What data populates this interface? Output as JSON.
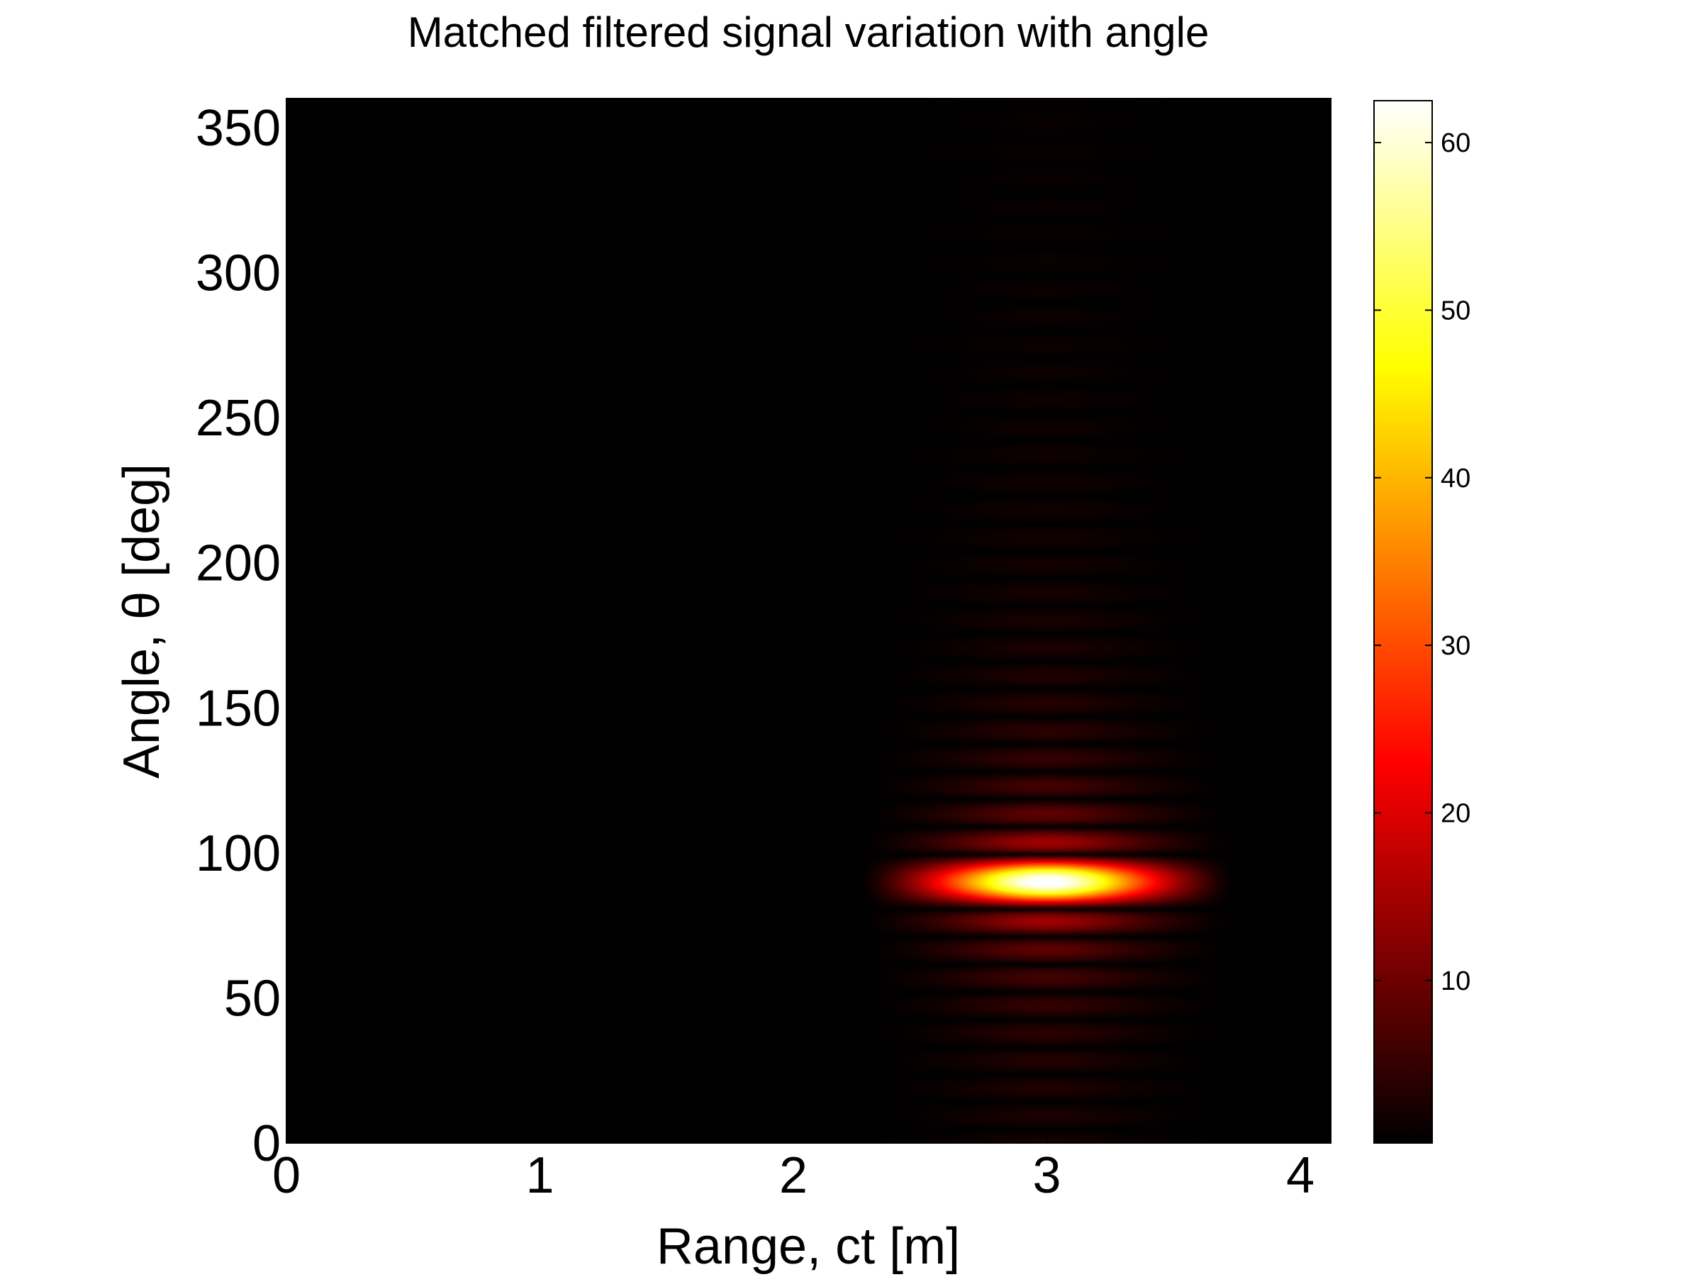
{
  "chart_data": {
    "type": "heatmap",
    "title": "Matched filtered signal variation with angle",
    "xlabel": "Range, ct [m]",
    "ylabel": "Angle, θ [deg]",
    "xlim": [
      0,
      4.12
    ],
    "ylim": [
      0,
      360
    ],
    "x_ticks": [
      0,
      1,
      2,
      3,
      4
    ],
    "y_ticks": [
      0,
      50,
      100,
      150,
      200,
      250,
      300,
      350
    ],
    "colormap": "hot",
    "colorbar": {
      "range": [
        0.3,
        62.5
      ],
      "ticks": [
        10,
        20,
        30,
        40,
        50,
        60
      ]
    },
    "peak": {
      "range": 3.0,
      "angle": 90,
      "value": 62.5,
      "range_extent": [
        2.27,
        3.73
      ]
    },
    "sidelobe_period_deg": 9.5,
    "grid": false
  }
}
